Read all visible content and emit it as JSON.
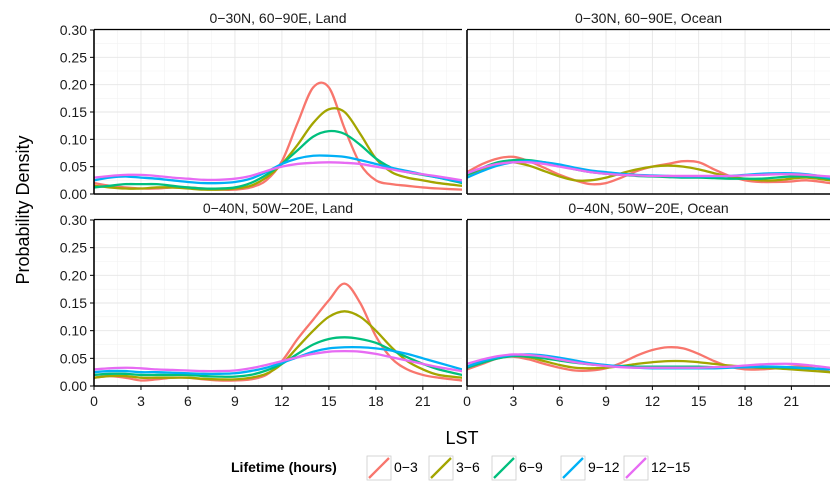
{
  "chart_data": {
    "type": "line",
    "xlabel": "LST",
    "ylabel": "Probability Density",
    "xlim": [
      0,
      23.5
    ],
    "ylim": [
      0,
      0.3
    ],
    "xticks": [
      "0",
      "3",
      "6",
      "9",
      "12",
      "15",
      "18",
      "21"
    ],
    "yticks": [
      "0.00",
      "0.05",
      "0.10",
      "0.15",
      "0.20",
      "0.25",
      "0.30"
    ],
    "x": [
      0,
      1,
      2,
      3,
      4,
      5,
      6,
      7,
      8,
      9,
      10,
      11,
      12,
      13,
      14,
      15,
      16,
      17,
      18,
      19,
      20,
      21,
      22,
      23.5
    ],
    "legend": {
      "title": "Lifetime (hours)",
      "position": "bottom",
      "entries": [
        {
          "label": "0−3",
          "color": "#F8766D"
        },
        {
          "label": "3−6",
          "color": "#A3A500"
        },
        {
          "label": "6−9",
          "color": "#00BF7D"
        },
        {
          "label": "9−12",
          "color": "#00B0F6"
        },
        {
          "label": "12−15",
          "color": "#E76BF3"
        }
      ]
    },
    "grid": true,
    "panels": [
      {
        "title": "0−30N, 60−90E, Land",
        "series": [
          {
            "key": "0-3",
            "color": "#F8766D",
            "values": [
              0.02,
              0.015,
              0.012,
              0.01,
              0.01,
              0.012,
              0.012,
              0.01,
              0.008,
              0.008,
              0.012,
              0.025,
              0.06,
              0.13,
              0.195,
              0.195,
              0.12,
              0.055,
              0.025,
              0.018,
              0.015,
              0.012,
              0.01,
              0.008
            ]
          },
          {
            "key": "3-6",
            "color": "#A3A500",
            "values": [
              0.015,
              0.012,
              0.01,
              0.01,
              0.012,
              0.012,
              0.01,
              0.008,
              0.008,
              0.01,
              0.015,
              0.03,
              0.055,
              0.09,
              0.13,
              0.155,
              0.15,
              0.11,
              0.065,
              0.04,
              0.03,
              0.025,
              0.02,
              0.015
            ]
          },
          {
            "key": "6-9",
            "color": "#00BF7D",
            "values": [
              0.012,
              0.015,
              0.018,
              0.018,
              0.018,
              0.015,
              0.012,
              0.01,
              0.01,
              0.012,
              0.02,
              0.035,
              0.055,
              0.08,
              0.105,
              0.115,
              0.11,
              0.09,
              0.065,
              0.048,
              0.04,
              0.035,
              0.03,
              0.02
            ]
          },
          {
            "key": "9-12",
            "color": "#00B0F6",
            "values": [
              0.025,
              0.03,
              0.032,
              0.03,
              0.028,
              0.025,
              0.022,
              0.02,
              0.02,
              0.022,
              0.028,
              0.04,
              0.055,
              0.065,
              0.07,
              0.07,
              0.068,
              0.062,
              0.055,
              0.048,
              0.042,
              0.036,
              0.03,
              0.022
            ]
          },
          {
            "key": "12-15",
            "color": "#E76BF3",
            "values": [
              0.03,
              0.033,
              0.035,
              0.035,
              0.033,
              0.03,
              0.028,
              0.026,
              0.026,
              0.028,
              0.033,
              0.042,
              0.05,
              0.055,
              0.057,
              0.058,
              0.057,
              0.055,
              0.05,
              0.045,
              0.04,
              0.036,
              0.032,
              0.025
            ]
          }
        ]
      },
      {
        "title": "0−30N, 60−90E, Ocean",
        "series": [
          {
            "key": "0-3",
            "color": "#F8766D",
            "values": [
              0.04,
              0.055,
              0.065,
              0.068,
              0.06,
              0.048,
              0.035,
              0.025,
              0.018,
              0.02,
              0.03,
              0.042,
              0.05,
              0.055,
              0.06,
              0.058,
              0.045,
              0.033,
              0.025,
              0.022,
              0.022,
              0.023,
              0.025,
              0.02
            ]
          },
          {
            "key": "3-6",
            "color": "#A3A500",
            "values": [
              0.035,
              0.045,
              0.055,
              0.058,
              0.052,
              0.042,
              0.032,
              0.025,
              0.025,
              0.03,
              0.038,
              0.045,
              0.05,
              0.052,
              0.05,
              0.045,
              0.038,
              0.032,
              0.028,
              0.025,
              0.025,
              0.028,
              0.03,
              0.025
            ]
          },
          {
            "key": "6-9",
            "color": "#00BF7D",
            "values": [
              0.035,
              0.048,
              0.058,
              0.062,
              0.062,
              0.058,
              0.052,
              0.045,
              0.04,
              0.037,
              0.035,
              0.033,
              0.032,
              0.031,
              0.03,
              0.03,
              0.029,
              0.028,
              0.028,
              0.028,
              0.03,
              0.032,
              0.032,
              0.028
            ]
          },
          {
            "key": "9-12",
            "color": "#00B0F6",
            "values": [
              0.03,
              0.042,
              0.052,
              0.058,
              0.06,
              0.058,
              0.054,
              0.048,
              0.043,
              0.04,
              0.037,
              0.035,
              0.034,
              0.033,
              0.032,
              0.032,
              0.032,
              0.033,
              0.035,
              0.037,
              0.038,
              0.038,
              0.036,
              0.03
            ]
          },
          {
            "key": "12-15",
            "color": "#E76BF3",
            "values": [
              0.038,
              0.048,
              0.055,
              0.058,
              0.058,
              0.055,
              0.05,
              0.045,
              0.04,
              0.037,
              0.035,
              0.034,
              0.033,
              0.033,
              0.033,
              0.033,
              0.033,
              0.033,
              0.034,
              0.035,
              0.036,
              0.036,
              0.035,
              0.032
            ]
          }
        ]
      },
      {
        "title": "0−40N, 50W−20E, Land",
        "series": [
          {
            "key": "0-3",
            "color": "#F8766D",
            "values": [
              0.015,
              0.018,
              0.015,
              0.01,
              0.012,
              0.015,
              0.015,
              0.012,
              0.01,
              0.01,
              0.012,
              0.02,
              0.045,
              0.085,
              0.12,
              0.155,
              0.185,
              0.15,
              0.09,
              0.05,
              0.03,
              0.02,
              0.015,
              0.01
            ]
          },
          {
            "key": "3-6",
            "color": "#A3A500",
            "values": [
              0.015,
              0.018,
              0.018,
              0.015,
              0.015,
              0.015,
              0.015,
              0.013,
              0.012,
              0.012,
              0.015,
              0.022,
              0.04,
              0.07,
              0.1,
              0.125,
              0.135,
              0.125,
              0.1,
              0.07,
              0.045,
              0.03,
              0.02,
              0.015
            ]
          },
          {
            "key": "6-9",
            "color": "#00BF7D",
            "values": [
              0.02,
              0.022,
              0.022,
              0.02,
              0.02,
              0.02,
              0.02,
              0.018,
              0.017,
              0.017,
              0.02,
              0.028,
              0.04,
              0.058,
              0.075,
              0.085,
              0.088,
              0.085,
              0.078,
              0.065,
              0.052,
              0.04,
              0.03,
              0.02
            ]
          },
          {
            "key": "9-12",
            "color": "#00B0F6",
            "values": [
              0.025,
              0.027,
              0.027,
              0.025,
              0.025,
              0.024,
              0.023,
              0.022,
              0.022,
              0.023,
              0.027,
              0.033,
              0.042,
              0.052,
              0.062,
              0.068,
              0.07,
              0.07,
              0.068,
              0.064,
              0.058,
              0.05,
              0.042,
              0.03
            ]
          },
          {
            "key": "12-15",
            "color": "#E76BF3",
            "values": [
              0.03,
              0.032,
              0.033,
              0.032,
              0.03,
              0.029,
              0.028,
              0.027,
              0.027,
              0.028,
              0.032,
              0.038,
              0.045,
              0.052,
              0.058,
              0.062,
              0.063,
              0.062,
              0.058,
              0.052,
              0.046,
              0.04,
              0.034,
              0.027
            ]
          }
        ]
      },
      {
        "title": "0−40N, 50W−20E, Ocean",
        "series": [
          {
            "key": "0-3",
            "color": "#F8766D",
            "values": [
              0.03,
              0.04,
              0.05,
              0.053,
              0.048,
              0.04,
              0.033,
              0.028,
              0.028,
              0.032,
              0.042,
              0.055,
              0.065,
              0.07,
              0.068,
              0.058,
              0.045,
              0.035,
              0.03,
              0.03,
              0.032,
              0.035,
              0.035,
              0.025
            ]
          },
          {
            "key": "3-6",
            "color": "#A3A500",
            "values": [
              0.035,
              0.045,
              0.052,
              0.055,
              0.052,
              0.045,
              0.038,
              0.033,
              0.032,
              0.033,
              0.036,
              0.04,
              0.043,
              0.045,
              0.045,
              0.043,
              0.04,
              0.037,
              0.035,
              0.033,
              0.032,
              0.03,
              0.028,
              0.025
            ]
          },
          {
            "key": "6-9",
            "color": "#00BF7D",
            "values": [
              0.033,
              0.042,
              0.05,
              0.054,
              0.053,
              0.05,
              0.046,
              0.042,
              0.039,
              0.037,
              0.036,
              0.035,
              0.035,
              0.035,
              0.035,
              0.035,
              0.034,
              0.034,
              0.034,
              0.034,
              0.034,
              0.033,
              0.032,
              0.03
            ]
          },
          {
            "key": "9-12",
            "color": "#00B0F6",
            "values": [
              0.035,
              0.045,
              0.052,
              0.056,
              0.057,
              0.055,
              0.051,
              0.046,
              0.041,
              0.038,
              0.035,
              0.033,
              0.032,
              0.032,
              0.032,
              0.032,
              0.032,
              0.033,
              0.034,
              0.035,
              0.035,
              0.034,
              0.032,
              0.03
            ]
          },
          {
            "key": "12-15",
            "color": "#E76BF3",
            "values": [
              0.04,
              0.048,
              0.054,
              0.057,
              0.056,
              0.053,
              0.048,
              0.043,
              0.039,
              0.036,
              0.034,
              0.033,
              0.033,
              0.033,
              0.033,
              0.033,
              0.034,
              0.035,
              0.037,
              0.039,
              0.04,
              0.04,
              0.038,
              0.033
            ]
          }
        ]
      }
    ]
  }
}
